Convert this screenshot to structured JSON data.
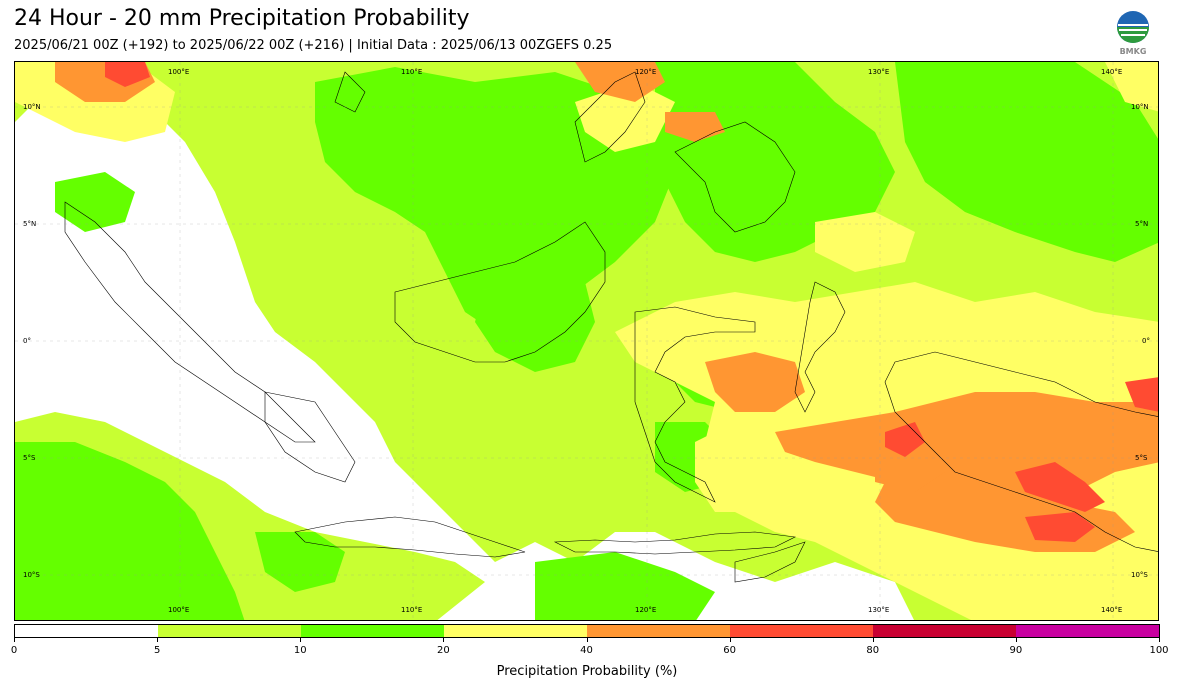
{
  "title": "24 Hour - 20 mm Precipitation Probability",
  "subtitle": "2025/06/21 00Z (+192) to 2025/06/22 00Z (+216) | Initial Data : 2025/06/13 00ZGEFS 0.25",
  "logo": {
    "name": "bmkg-logo",
    "text": "BMKG"
  },
  "map": {
    "lon_labels": [
      "100°E",
      "110°E",
      "120°E",
      "130°E",
      "140°E"
    ],
    "lat_labels": [
      "10°N",
      "5°N",
      "0°",
      "5°S",
      "10°S"
    ]
  },
  "colorbar": {
    "title": "Precipitation Probability (%)",
    "ticks": [
      "0",
      "5",
      "10",
      "20",
      "40",
      "60",
      "80",
      "90",
      "100"
    ],
    "colors": [
      "#ffffff",
      "#c8ff32",
      "#64ff00",
      "#ffff64",
      "#ff9632",
      "#ff4b32",
      "#c80032",
      "#c800a0"
    ]
  }
}
